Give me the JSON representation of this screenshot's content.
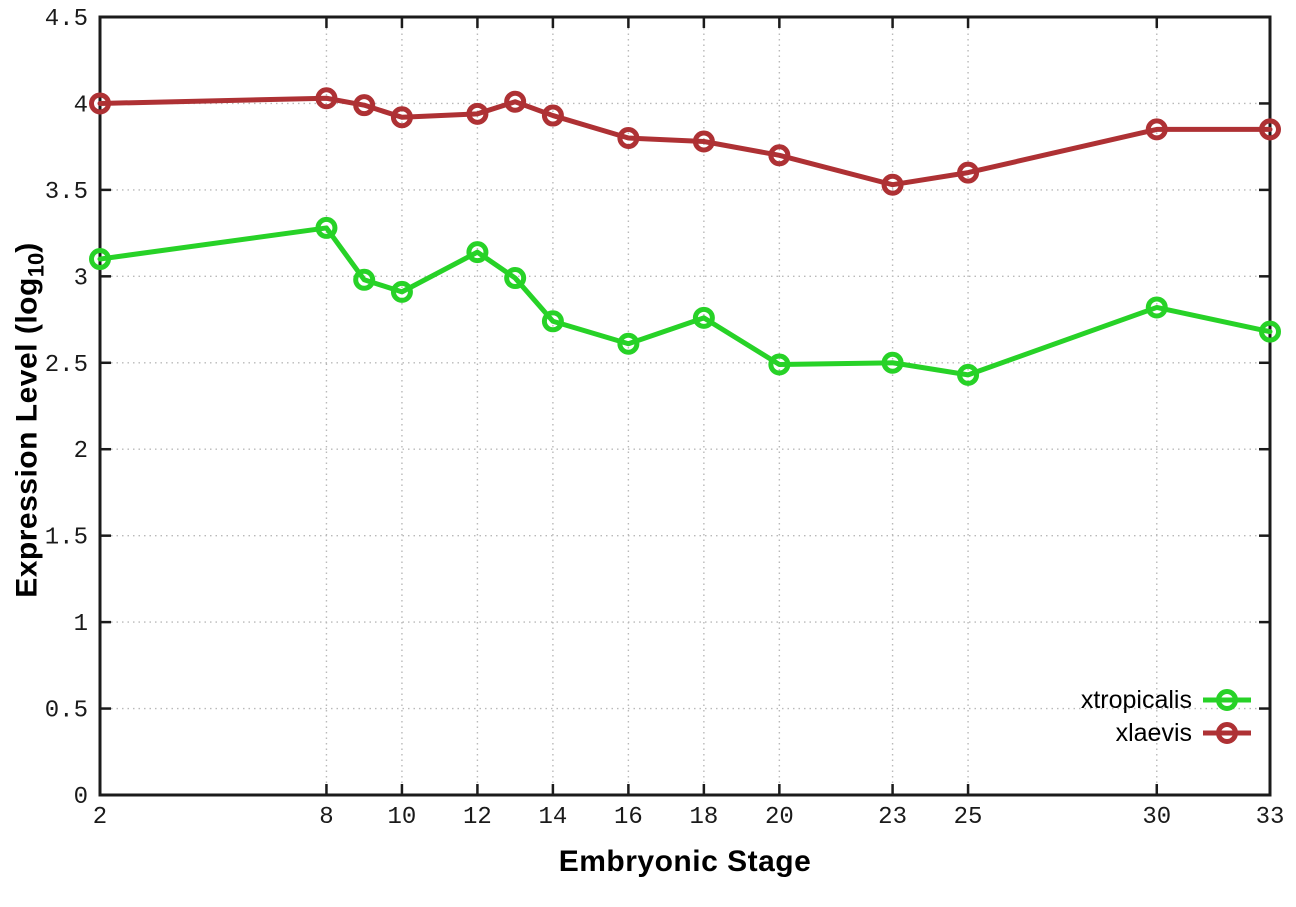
{
  "chart_data": {
    "type": "line",
    "title": "",
    "xlabel": "Embryonic Stage",
    "ylabel": "Expression Level (log10)",
    "ylabel_parts": {
      "main": "Expression Level (log",
      "sub": "10",
      "close": ")"
    },
    "x": [
      2,
      8,
      9,
      10,
      12,
      13,
      14,
      16,
      18,
      20,
      23,
      25,
      30,
      33
    ],
    "series": [
      {
        "name": "xtropicalis",
        "color": "#27D227",
        "values": [
          3.1,
          3.28,
          2.98,
          2.91,
          3.14,
          2.99,
          2.74,
          2.61,
          2.76,
          2.49,
          2.5,
          2.43,
          2.82,
          2.68
        ]
      },
      {
        "name": "xlaevis",
        "color": "#AE3134",
        "values": [
          4.0,
          4.03,
          3.99,
          3.92,
          3.94,
          4.01,
          3.93,
          3.8,
          3.78,
          3.7,
          3.53,
          3.6,
          3.85,
          3.85
        ]
      }
    ],
    "x_ticks": [
      2,
      8,
      10,
      12,
      14,
      16,
      18,
      20,
      23,
      25,
      30,
      33
    ],
    "x_tick_labels": [
      "2",
      "8",
      "10",
      "12",
      "14",
      "16",
      "18",
      "20",
      "23",
      "25",
      "30",
      "33"
    ],
    "y_ticks": [
      0,
      0.5,
      1,
      1.5,
      2,
      2.5,
      3,
      3.5,
      4,
      4.5
    ],
    "y_tick_labels": [
      "0",
      "0.5",
      "1",
      "1.5",
      "2",
      "2.5",
      "3",
      "3.5",
      "4",
      "4.5"
    ],
    "xlim": [
      2,
      33
    ],
    "ylim": [
      0,
      4.5
    ],
    "grid": true,
    "grid_style": "dotted",
    "legend_position": "inside-bottom-right",
    "marker": "open-circle",
    "colors": {
      "grid": "#B9B9B9",
      "border": "#1B1B1B",
      "tick_text": "#1A1A1A"
    }
  }
}
